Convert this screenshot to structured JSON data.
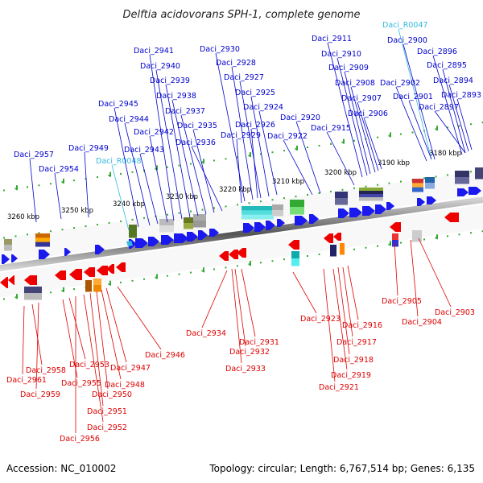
{
  "title": "Delftia acidovorans SPH-1, complete genome",
  "footer": {
    "accession": "Accession: NC_010002",
    "topology": "Topology: circular; Length: 6,767,514 bp; Genes: 6,135"
  },
  "colors": {
    "top_strand_gene": "#0000cc",
    "top_strand_rna": "#33bbdd",
    "bottom_strand_gene": "#dd0000",
    "arrow_top": "#1a1aee",
    "arrow_bottom": "#ee0000",
    "tick": "#33aa33"
  },
  "kbp_labels": [
    "3260 kbp",
    "3250 kbp",
    "3240 kbp",
    "3230 kbp",
    "3220 kbp",
    "3210 kbp",
    "3200 kbp",
    "3190 kbp",
    "3180 kbp"
  ],
  "top_genes": [
    "Daci_2957",
    "Daci_2954",
    "Daci_2949",
    "Daci_R0048",
    "Daci_2945",
    "Daci_2944",
    "Daci_2943",
    "Daci_2942",
    "Daci_2941",
    "Daci_2940",
    "Daci_2939",
    "Daci_2938",
    "Daci_2937",
    "Daci_2935",
    "Daci_2936",
    "Daci_2930",
    "Daci_2928",
    "Daci_2927",
    "Daci_2925",
    "Daci_2924",
    "Daci_2926",
    "Daci_2929",
    "Daci_2920",
    "Daci_2922",
    "Daci_2911",
    "Daci_2910",
    "Daci_2909",
    "Daci_2908",
    "Daci_2907",
    "Daci_2906",
    "Daci_2915",
    "Daci_R0047",
    "Daci_2900",
    "Daci_2902",
    "Daci_2901",
    "Daci_2896",
    "Daci_2895",
    "Daci_2894",
    "Daci_2893",
    "Daci_2897"
  ],
  "bottom_genes": [
    "Daci_2961",
    "Daci_2958",
    "Daci_2959",
    "Daci_2955",
    "Daci_2953",
    "Daci_2956",
    "Daci_2952",
    "Daci_2951",
    "Daci_2950",
    "Daci_2948",
    "Daci_2947",
    "Daci_2946",
    "Daci_2934",
    "Daci_2931",
    "Daci_2932",
    "Daci_2933",
    "Daci_2923",
    "Daci_2916",
    "Daci_2917",
    "Daci_2918",
    "Daci_2919",
    "Daci_2921",
    "Daci_2905",
    "Daci_2903",
    "Daci_2904"
  ]
}
